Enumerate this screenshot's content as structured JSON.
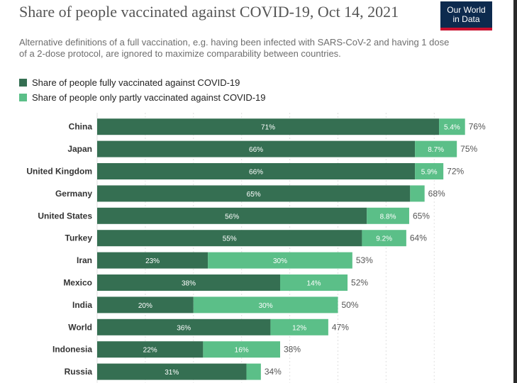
{
  "title": "Share of people vaccinated against COVID-19, Oct 14, 2021",
  "subtitle": "Alternative definitions of a full vaccination, e.g. having been infected with SARS-CoV-2 and having 1 dose of a 2-dose protocol, are ignored to maximize comparability between countries.",
  "logo": {
    "line1": "Our World",
    "line2": "in Data"
  },
  "colors": {
    "fully": "#356f52",
    "partly": "#5bbf88",
    "grid": "#e0e0e0"
  },
  "chart_data": {
    "type": "bar",
    "orientation": "horizontal",
    "stacked": true,
    "title": "Share of people vaccinated against COVID-19, Oct 14, 2021",
    "xlabel": "",
    "ylabel": "",
    "xlim": [
      0,
      76
    ],
    "categories": [
      "China",
      "Japan",
      "United Kingdom",
      "Germany",
      "United States",
      "Turkey",
      "Iran",
      "Mexico",
      "India",
      "World",
      "Indonesia",
      "Russia"
    ],
    "series": [
      {
        "name": "Share of people fully vaccinated against COVID-19",
        "values": [
          71,
          66,
          66,
          65,
          56,
          55,
          23,
          38,
          20,
          36,
          22,
          31
        ],
        "labels": [
          "71%",
          "66%",
          "66%",
          "65%",
          "56%",
          "55%",
          "23%",
          "38%",
          "20%",
          "36%",
          "22%",
          "31%"
        ]
      },
      {
        "name": "Share of people only partly vaccinated against COVID-19",
        "values": [
          5.4,
          8.7,
          5.9,
          3,
          8.8,
          9.2,
          30,
          14,
          30,
          12,
          16,
          3
        ],
        "labels": [
          "5.4%",
          "8.7%",
          "5.9%",
          "",
          "8.8%",
          "9.2%",
          "30%",
          "14%",
          "30%",
          "12%",
          "16%",
          ""
        ]
      }
    ],
    "totals": [
      "76%",
      "75%",
      "72%",
      "68%",
      "65%",
      "64%",
      "53%",
      "52%",
      "50%",
      "47%",
      "38%",
      "34%"
    ]
  }
}
